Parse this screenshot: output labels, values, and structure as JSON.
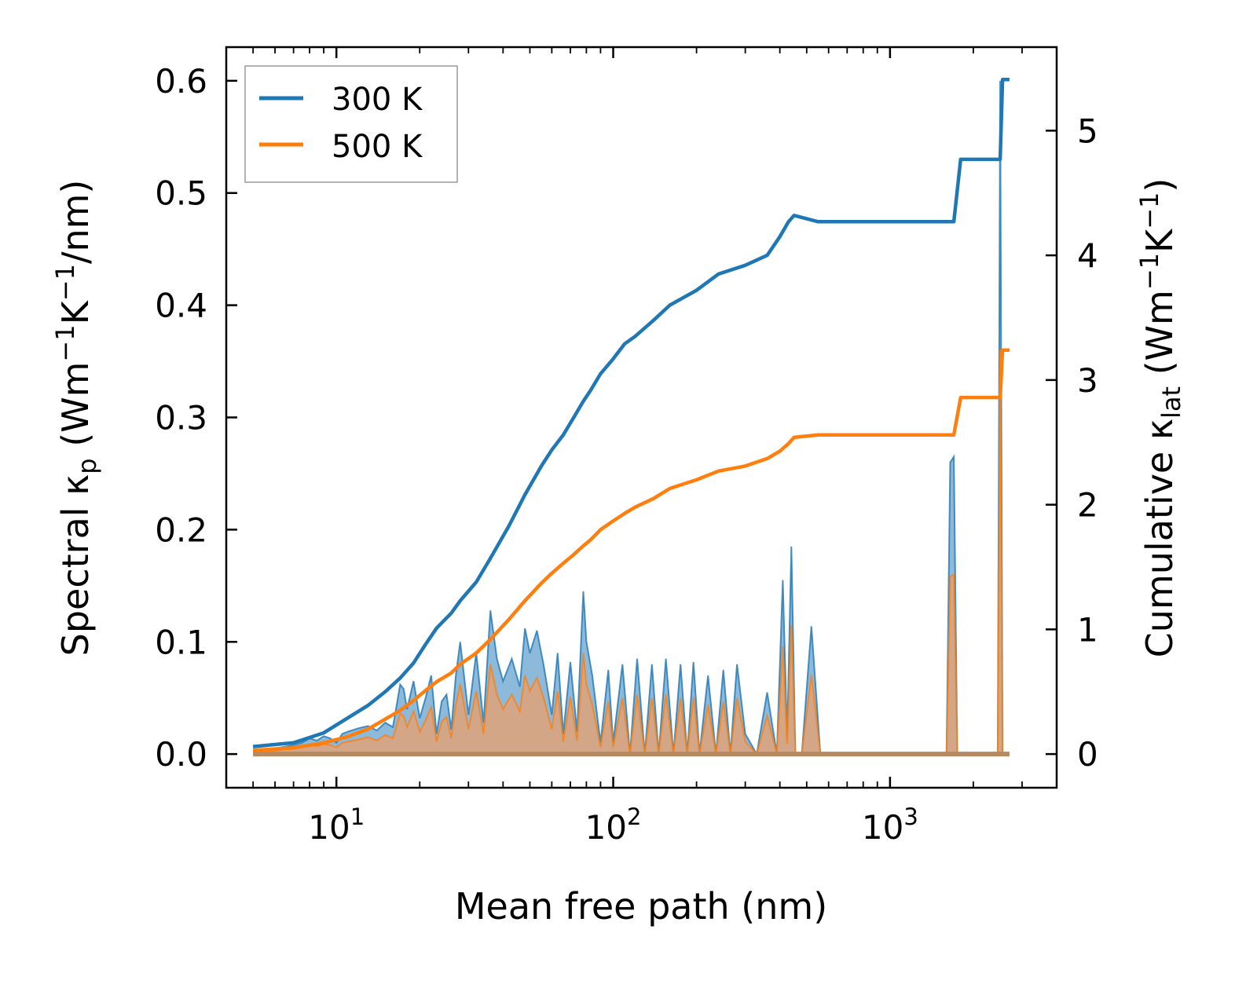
{
  "chart_data": {
    "type": "area+line (dual-axis, log-x)",
    "xlabel": "Mean free path (nm)",
    "ylabel_left": {
      "main": "Spectral κ",
      "sub": "p",
      "units_pre": " (Wm",
      "sup1": "−1",
      "mid": "K",
      "sup2": "−1",
      "post": "/nm)"
    },
    "ylabel_right": {
      "main": "Cumulative κ",
      "sub": "lat",
      "units_pre": " (Wm",
      "sup1": "−1",
      "mid": "K",
      "sup2": "−1",
      "post": ")"
    },
    "x_scale": "log",
    "xlim": [
      4,
      4000
    ],
    "ylim_left": [
      -0.03,
      0.63
    ],
    "ylim_right": [
      -0.27,
      5.67
    ],
    "x_ticks": [
      {
        "value": 10,
        "base": "10",
        "exp": "1"
      },
      {
        "value": 100,
        "base": "10",
        "exp": "2"
      },
      {
        "value": 1000,
        "base": "10",
        "exp": "3"
      }
    ],
    "y_ticks_left": [
      "0.0",
      "0.1",
      "0.2",
      "0.3",
      "0.4",
      "0.5",
      "0.6"
    ],
    "y_ticks_right": [
      "0",
      "1",
      "2",
      "3",
      "4",
      "5"
    ],
    "legend": {
      "position": "top-left",
      "entries": [
        "300 K",
        "500 K"
      ]
    },
    "colors": {
      "s300": "#1f77b4",
      "s500": "#ff7f0e",
      "fill300": "#2f7fbd",
      "fill500": "#e9a06a"
    },
    "cumulative_series": [
      {
        "name": "300 K",
        "axis": "right",
        "x": [
          5,
          7,
          9,
          11,
          13,
          15,
          17,
          19,
          21,
          23,
          26,
          28,
          32,
          36,
          42,
          48,
          55,
          60,
          66,
          72,
          78,
          83,
          90,
          100,
          110,
          120,
          140,
          160,
          200,
          240,
          300,
          360,
          400,
          430,
          450,
          550,
          1700,
          1800,
          2500,
          2550,
          2700
        ],
        "y": [
          0.06,
          0.09,
          0.17,
          0.29,
          0.39,
          0.5,
          0.61,
          0.73,
          0.88,
          1.01,
          1.13,
          1.23,
          1.38,
          1.57,
          1.83,
          2.08,
          2.31,
          2.44,
          2.56,
          2.7,
          2.83,
          2.92,
          3.05,
          3.17,
          3.29,
          3.35,
          3.48,
          3.6,
          3.72,
          3.85,
          3.92,
          4.0,
          4.15,
          4.27,
          4.32,
          4.27,
          4.27,
          4.77,
          4.77,
          5.41,
          5.41
        ]
      },
      {
        "name": "500 K",
        "axis": "right",
        "x": [
          5,
          7,
          9,
          11,
          13,
          15,
          17,
          19,
          21,
          23,
          26,
          28,
          32,
          36,
          42,
          48,
          55,
          60,
          66,
          72,
          78,
          83,
          90,
          100,
          110,
          120,
          140,
          160,
          200,
          240,
          300,
          360,
          400,
          430,
          450,
          550,
          1700,
          1800,
          2500,
          2550,
          2700
        ],
        "y": [
          0.03,
          0.05,
          0.09,
          0.14,
          0.2,
          0.28,
          0.35,
          0.43,
          0.51,
          0.58,
          0.65,
          0.72,
          0.81,
          0.92,
          1.08,
          1.23,
          1.37,
          1.45,
          1.53,
          1.6,
          1.67,
          1.72,
          1.8,
          1.87,
          1.93,
          1.98,
          2.05,
          2.13,
          2.2,
          2.27,
          2.31,
          2.37,
          2.43,
          2.49,
          2.54,
          2.56,
          2.56,
          2.86,
          2.86,
          3.24,
          3.24
        ]
      }
    ],
    "spectral_series": [
      {
        "name": "300 K",
        "axis": "left",
        "x": [
          5,
          6,
          7,
          7.5,
          8,
          8.5,
          9,
          9.5,
          10,
          10.5,
          11,
          12,
          13,
          14,
          15,
          16,
          17,
          17.5,
          18,
          19,
          20,
          21,
          22,
          23,
          24,
          25,
          26,
          27,
          28,
          30,
          32,
          34,
          36,
          38,
          40,
          43,
          46,
          48,
          50,
          53,
          56,
          60,
          63,
          66,
          70,
          74,
          78,
          80,
          84,
          90,
          96,
          100,
          108,
          115,
          122,
          130,
          138,
          146,
          155,
          165,
          175,
          185,
          195,
          205,
          220,
          235,
          250,
          265,
          280,
          300,
          330,
          360,
          390,
          410,
          425,
          440,
          455,
          480,
          520,
          560,
          600,
          1600,
          1650,
          1700,
          1750,
          1800,
          1850,
          2400,
          2450,
          2500,
          2550,
          2600,
          2700
        ],
        "y": [
          0.003,
          0.005,
          0.008,
          0.01,
          0.014,
          0.012,
          0.016,
          0.014,
          0.01,
          0.018,
          0.02,
          0.023,
          0.025,
          0.021,
          0.028,
          0.024,
          0.062,
          0.058,
          0.04,
          0.065,
          0.032,
          0.05,
          0.07,
          0.018,
          0.047,
          0.053,
          0.022,
          0.07,
          0.1,
          0.035,
          0.09,
          0.028,
          0.128,
          0.085,
          0.065,
          0.085,
          0.06,
          0.112,
          0.09,
          0.11,
          0.08,
          0.035,
          0.09,
          0.018,
          0.082,
          0.02,
          0.145,
          0.1,
          0.07,
          0.01,
          0.075,
          0.01,
          0.08,
          0.0,
          0.085,
          0.0,
          0.08,
          0.0,
          0.085,
          0.0,
          0.08,
          0.0,
          0.082,
          0.0,
          0.07,
          0.0,
          0.075,
          0.0,
          0.08,
          0.018,
          0.0,
          0.055,
          0.0,
          0.155,
          0.015,
          0.185,
          0.0,
          0.0,
          0.114,
          0.0,
          0.0,
          0.0,
          0.26,
          0.265,
          0.0,
          0.0,
          0.0,
          0.0,
          0.0,
          0.6,
          0.0,
          0.0,
          0.0
        ]
      },
      {
        "name": "500 K",
        "axis": "left",
        "x": [
          5,
          6,
          7,
          7.5,
          8,
          8.5,
          9,
          9.5,
          10,
          10.5,
          11,
          12,
          13,
          14,
          15,
          16,
          17,
          17.5,
          18,
          19,
          20,
          21,
          22,
          23,
          24,
          25,
          26,
          27,
          28,
          30,
          32,
          34,
          36,
          38,
          40,
          43,
          46,
          48,
          50,
          53,
          56,
          60,
          63,
          66,
          70,
          74,
          78,
          80,
          84,
          90,
          96,
          100,
          108,
          115,
          122,
          130,
          138,
          146,
          155,
          165,
          175,
          185,
          195,
          205,
          220,
          235,
          250,
          265,
          280,
          300,
          330,
          360,
          390,
          410,
          425,
          440,
          455,
          480,
          520,
          560,
          600,
          1600,
          1650,
          1700,
          1750,
          1800,
          1850,
          2400,
          2450,
          2500,
          2550,
          2600,
          2700
        ],
        "y": [
          0.002,
          0.003,
          0.005,
          0.006,
          0.008,
          0.007,
          0.009,
          0.008,
          0.006,
          0.01,
          0.011,
          0.013,
          0.015,
          0.012,
          0.017,
          0.014,
          0.036,
          0.034,
          0.024,
          0.038,
          0.02,
          0.03,
          0.042,
          0.011,
          0.029,
          0.033,
          0.014,
          0.044,
          0.062,
          0.022,
          0.056,
          0.018,
          0.08,
          0.053,
          0.04,
          0.053,
          0.038,
          0.07,
          0.056,
          0.068,
          0.05,
          0.022,
          0.056,
          0.011,
          0.051,
          0.012,
          0.09,
          0.062,
          0.044,
          0.006,
          0.047,
          0.006,
          0.05,
          0.0,
          0.053,
          0.0,
          0.05,
          0.0,
          0.053,
          0.0,
          0.05,
          0.0,
          0.051,
          0.0,
          0.044,
          0.0,
          0.047,
          0.0,
          0.05,
          0.011,
          0.0,
          0.034,
          0.0,
          0.096,
          0.009,
          0.115,
          0.0,
          0.0,
          0.071,
          0.0,
          0.0,
          0.0,
          0.158,
          0.16,
          0.0,
          0.0,
          0.0,
          0.0,
          0.0,
          0.36,
          0.0,
          0.0,
          0.0
        ]
      }
    ]
  }
}
